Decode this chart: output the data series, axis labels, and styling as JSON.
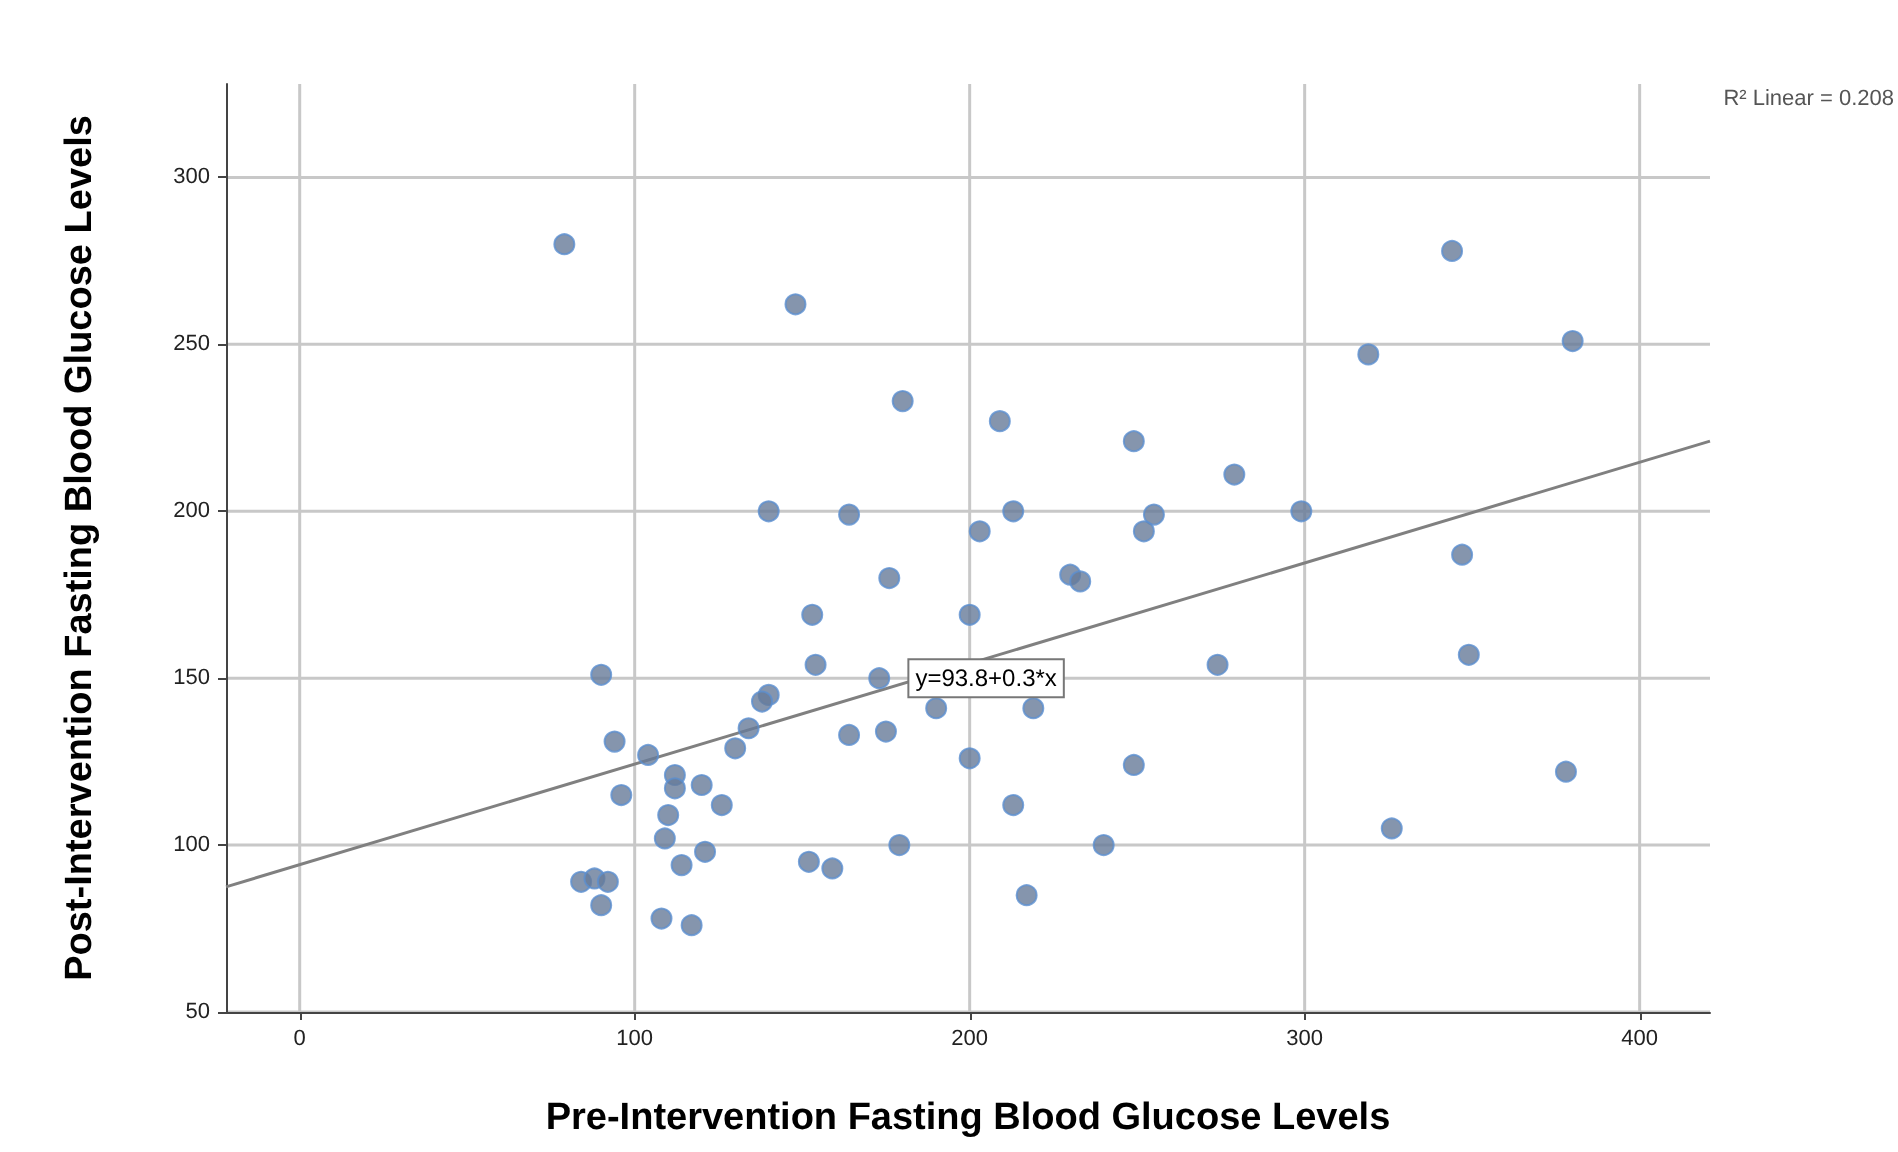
{
  "chart_data": {
    "type": "scatter",
    "xlabel": "Pre-Intervention Fasting Blood Glucose Levels",
    "ylabel": "Post-Intervention Fasting Blood Glucose Levels",
    "xlim": [
      -22,
      421
    ],
    "ylim": [
      50,
      328
    ],
    "xticks": [
      0,
      100,
      200,
      300,
      400
    ],
    "yticks": [
      50,
      100,
      150,
      200,
      250,
      300
    ],
    "grid": true,
    "marker": "circle",
    "annotations": [
      {
        "text": "y=93.8+0.3*x",
        "x": 182,
        "y": 150
      },
      "R² Linear = 0.208"
    ],
    "series": [
      {
        "color": "#667a98",
        "x": [
          79,
          148,
          180,
          209,
          140,
          164,
          213,
          203,
          176,
          200,
          153,
          230,
          233,
          249,
          255,
          252,
          279,
          299,
          319,
          344,
          380,
          347,
          349,
          274,
          173,
          190,
          219,
          154,
          90,
          94,
          104,
          96,
          140,
          138,
          134,
          130,
          112,
          112,
          120,
          110,
          126,
          109,
          121,
          114,
          164,
          175,
          200,
          249,
          213,
          179,
          152,
          159,
          108,
          117,
          84,
          88,
          92,
          90,
          217,
          240,
          326,
          378
        ],
        "values": [
          280,
          262,
          233,
          227,
          200,
          199,
          200,
          194,
          180,
          169,
          169,
          181,
          179,
          221,
          199,
          194,
          211,
          200,
          247,
          278,
          251,
          187,
          157,
          154,
          150,
          141,
          141,
          154,
          151,
          131,
          127,
          115,
          145,
          143,
          135,
          129,
          121,
          117,
          118,
          109,
          112,
          102,
          98,
          94,
          133,
          134,
          126,
          124,
          112,
          100,
          95,
          93,
          78,
          76,
          89,
          90,
          89,
          82,
          85,
          100,
          105,
          122
        ]
      },
      {
        "type": "line",
        "marker": "none",
        "color": "#808080",
        "x": [
          -22,
          421
        ],
        "values": [
          87.5,
          221
        ]
      }
    ]
  }
}
